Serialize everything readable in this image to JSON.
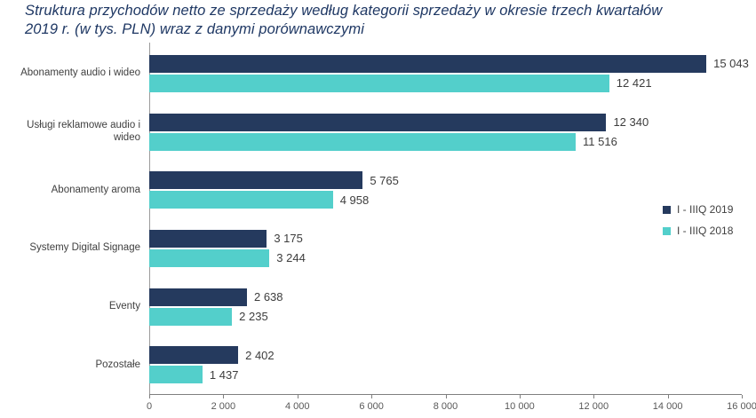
{
  "title_lines": [
    "Struktura przychodów netto ze sprzedaży według kategorii sprzedaży w okresie trzech kwartałów",
    "2019 r.  (w tys. PLN) wraz z danymi porównawczymi"
  ],
  "chart_data": {
    "type": "bar",
    "orientation": "horizontal",
    "title": "Struktura przychodów netto ze sprzedaży według kategorii sprzedaży w okresie trzech kwartałów 2019 r. (w tys. PLN) wraz z danymi porównawczymi",
    "categories": [
      "Abonamenty audio i wideo",
      "Usługi reklamowe audio i wideo",
      "Abonamenty aroma",
      "Systemy Digital Signage",
      "Eventy",
      "Pozostałe"
    ],
    "series": [
      {
        "name": "I - IIIQ 2019",
        "color": "#253a5e",
        "values": [
          15043,
          12340,
          5765,
          3175,
          2638,
          2402
        ],
        "value_labels": [
          "15 043",
          "12 340",
          "5 765",
          "3 175",
          "2 638",
          "2 402"
        ]
      },
      {
        "name": "I - IIIQ 2018",
        "color": "#53cfcb",
        "values": [
          12421,
          11516,
          4958,
          3244,
          2235,
          1437
        ],
        "value_labels": [
          "12 421",
          "11 516",
          "4 958",
          "3 244",
          "2 235",
          "1 437"
        ]
      }
    ],
    "xlabel": "",
    "ylabel": "",
    "xlim": [
      0,
      16000
    ],
    "x_tick_labels": [
      "0",
      "2 000",
      "4 000",
      "6 000",
      "8 000",
      "10 000",
      "12 000",
      "14 000",
      "16 000"
    ],
    "grid": false,
    "legend_position": "right-middle"
  }
}
